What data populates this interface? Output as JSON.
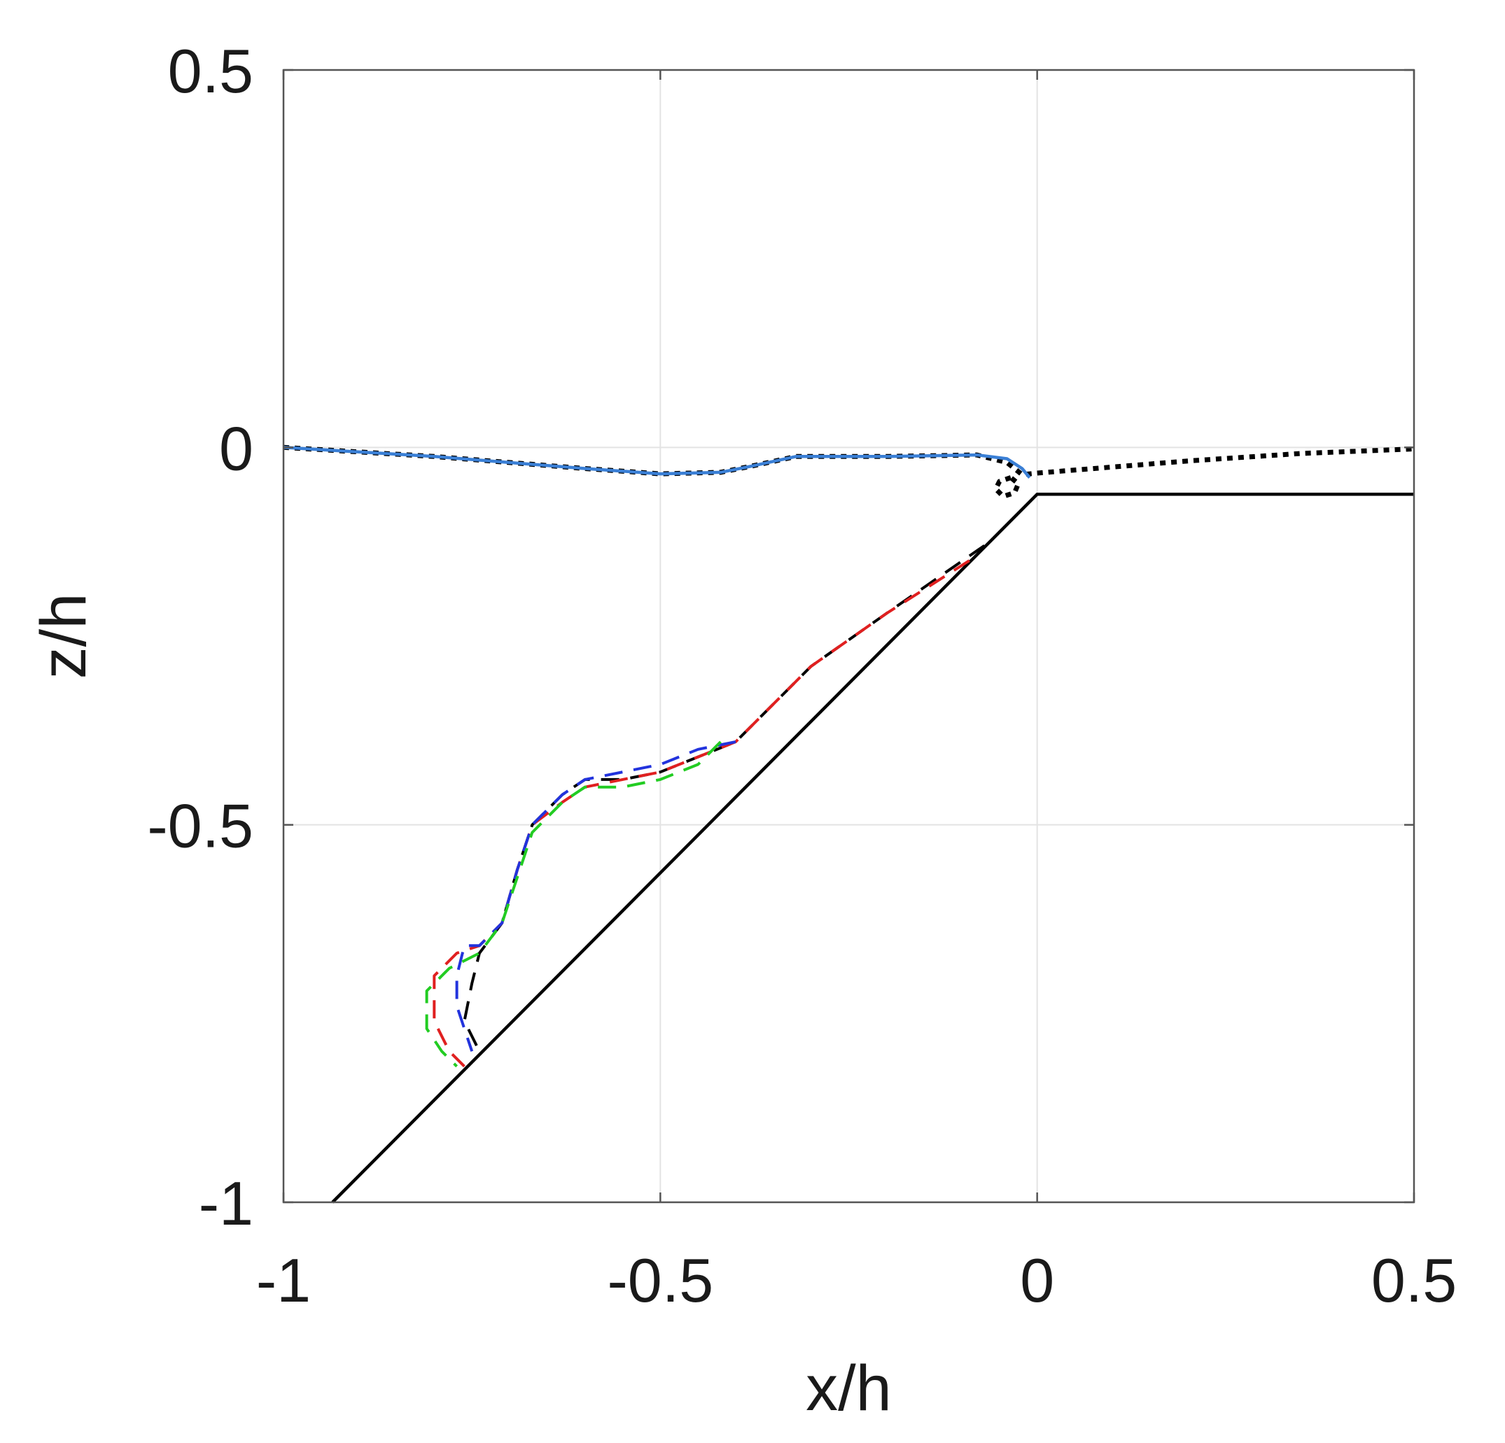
{
  "chart_data": {
    "type": "line",
    "title": "",
    "xlabel": "x/h",
    "ylabel": "z/h",
    "xlim": [
      -1,
      0.5
    ],
    "ylim": [
      -1,
      0.5
    ],
    "xticks": [
      -1,
      -0.5,
      0,
      0.5
    ],
    "yticks": [
      -1,
      -0.5,
      0,
      0.5
    ],
    "xtick_labels": [
      "-1",
      "-0.5",
      "0",
      "0.5"
    ],
    "ytick_labels": [
      "-1",
      "-0.5",
      "0",
      "0.5"
    ],
    "grid": true,
    "legend": "none",
    "series": [
      {
        "style": "solid",
        "color": "#000000",
        "x": [
          -0.935,
          0.0,
          0.5
        ],
        "y": [
          -1.0,
          -0.062,
          -0.062
        ]
      },
      {
        "style": "dotted",
        "color": "#000000",
        "x": [
          -1.0,
          -0.8,
          -0.6,
          -0.5,
          -0.42,
          -0.38,
          -0.32,
          -0.2,
          -0.08,
          -0.04,
          -0.02,
          0.0,
          0.2,
          0.35,
          0.5
        ],
        "y": [
          0.0,
          -0.012,
          -0.028,
          -0.035,
          -0.033,
          -0.025,
          -0.012,
          -0.012,
          -0.01,
          -0.02,
          -0.036,
          -0.034,
          -0.018,
          -0.008,
          -0.002
        ]
      },
      {
        "style": "solid",
        "color": "#3a7fd5",
        "x": [
          -1.0,
          -0.8,
          -0.6,
          -0.5,
          -0.42,
          -0.38,
          -0.32,
          -0.2,
          -0.08,
          -0.04,
          -0.02,
          -0.01
        ],
        "y": [
          0.0,
          -0.012,
          -0.028,
          -0.035,
          -0.033,
          -0.025,
          -0.012,
          -0.012,
          -0.01,
          -0.015,
          -0.028,
          -0.04
        ]
      },
      {
        "style": "dashed",
        "color": "#000000",
        "x": [
          -0.07,
          -0.2,
          -0.3,
          -0.4,
          -0.45,
          -0.5,
          -0.55,
          -0.6,
          -0.63,
          -0.67,
          -0.69,
          -0.71,
          -0.74,
          -0.75,
          -0.76,
          -0.74
        ],
        "y": [
          -0.13,
          -0.22,
          -0.29,
          -0.39,
          -0.41,
          -0.43,
          -0.44,
          -0.44,
          -0.46,
          -0.5,
          -0.56,
          -0.63,
          -0.67,
          -0.71,
          -0.76,
          -0.8
        ]
      },
      {
        "style": "dashed",
        "color": "#e02020",
        "x": [
          -0.09,
          -0.2,
          -0.3,
          -0.4,
          -0.45,
          -0.5,
          -0.55,
          -0.6,
          -0.63,
          -0.67,
          -0.69,
          -0.71,
          -0.74,
          -0.77,
          -0.8,
          -0.8,
          -0.78,
          -0.76
        ],
        "y": [
          -0.15,
          -0.22,
          -0.29,
          -0.39,
          -0.41,
          -0.43,
          -0.44,
          -0.45,
          -0.47,
          -0.5,
          -0.56,
          -0.63,
          -0.66,
          -0.67,
          -0.7,
          -0.76,
          -0.8,
          -0.82
        ]
      },
      {
        "style": "dashed",
        "color": "#2233dd",
        "x": [
          -0.4,
          -0.45,
          -0.5,
          -0.55,
          -0.6,
          -0.63,
          -0.67,
          -0.69,
          -0.71,
          -0.74,
          -0.76,
          -0.77,
          -0.77,
          -0.76,
          -0.75
        ],
        "y": [
          -0.39,
          -0.4,
          -0.42,
          -0.43,
          -0.44,
          -0.46,
          -0.5,
          -0.56,
          -0.63,
          -0.66,
          -0.66,
          -0.7,
          -0.74,
          -0.77,
          -0.8
        ]
      },
      {
        "style": "dashed",
        "color": "#22cc22",
        "x": [
          -0.42,
          -0.45,
          -0.5,
          -0.55,
          -0.6,
          -0.63,
          -0.67,
          -0.69,
          -0.71,
          -0.74,
          -0.78,
          -0.81,
          -0.81,
          -0.79,
          -0.77
        ],
        "y": [
          -0.39,
          -0.42,
          -0.44,
          -0.45,
          -0.45,
          -0.47,
          -0.51,
          -0.57,
          -0.63,
          -0.67,
          -0.69,
          -0.72,
          -0.77,
          -0.8,
          -0.82
        ]
      },
      {
        "style": "dotted",
        "color": "#000000",
        "x": [
          -0.035,
          -0.05,
          -0.055,
          -0.045,
          -0.03,
          -0.025,
          -0.035
        ],
        "y": [
          -0.04,
          -0.045,
          -0.055,
          -0.065,
          -0.06,
          -0.048,
          -0.04
        ]
      }
    ]
  }
}
